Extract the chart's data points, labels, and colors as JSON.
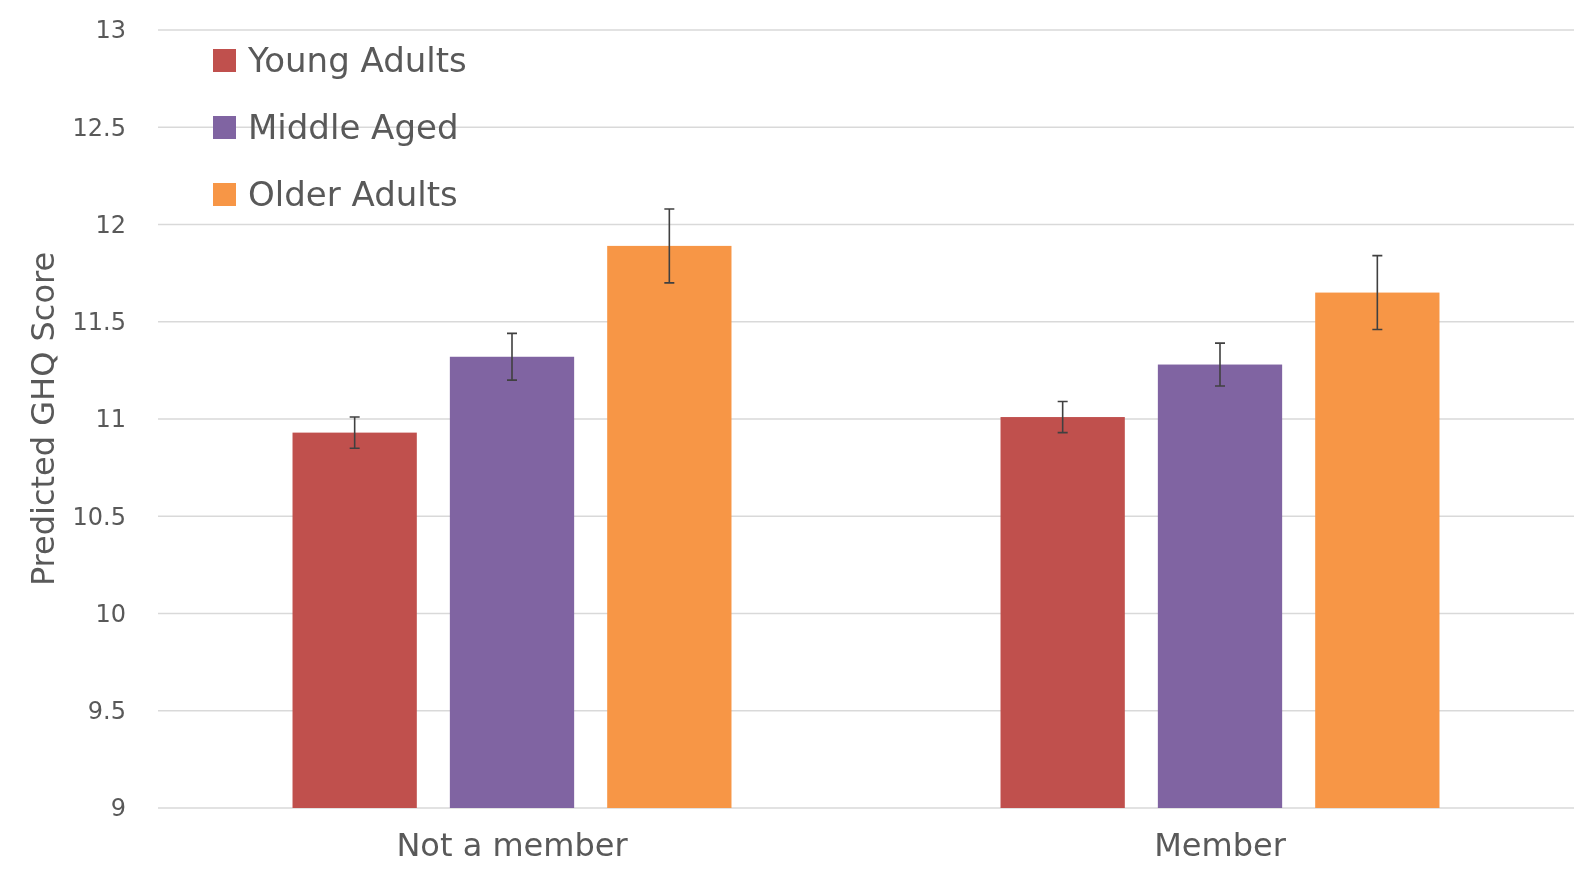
{
  "chart_data": {
    "type": "bar",
    "ylabel": "Predicted GHQ Score",
    "categories": [
      "Not a member",
      "Member"
    ],
    "series": [
      {
        "name": "Young Adults",
        "color": "#c0504d",
        "values": [
          10.93,
          11.01
        ],
        "errors": [
          0.08,
          0.08
        ]
      },
      {
        "name": "Middle Aged",
        "color": "#8064a2",
        "values": [
          11.32,
          11.28
        ],
        "errors": [
          0.12,
          0.11
        ]
      },
      {
        "name": "Older Adults",
        "color": "#f79646",
        "values": [
          11.89,
          11.65
        ],
        "errors": [
          0.19,
          0.19
        ]
      }
    ],
    "ylim": [
      9,
      13
    ],
    "yticks": [
      9,
      9.5,
      10,
      10.5,
      11,
      11.5,
      12,
      12.5,
      13
    ],
    "grid": "y",
    "legend": "top left"
  }
}
